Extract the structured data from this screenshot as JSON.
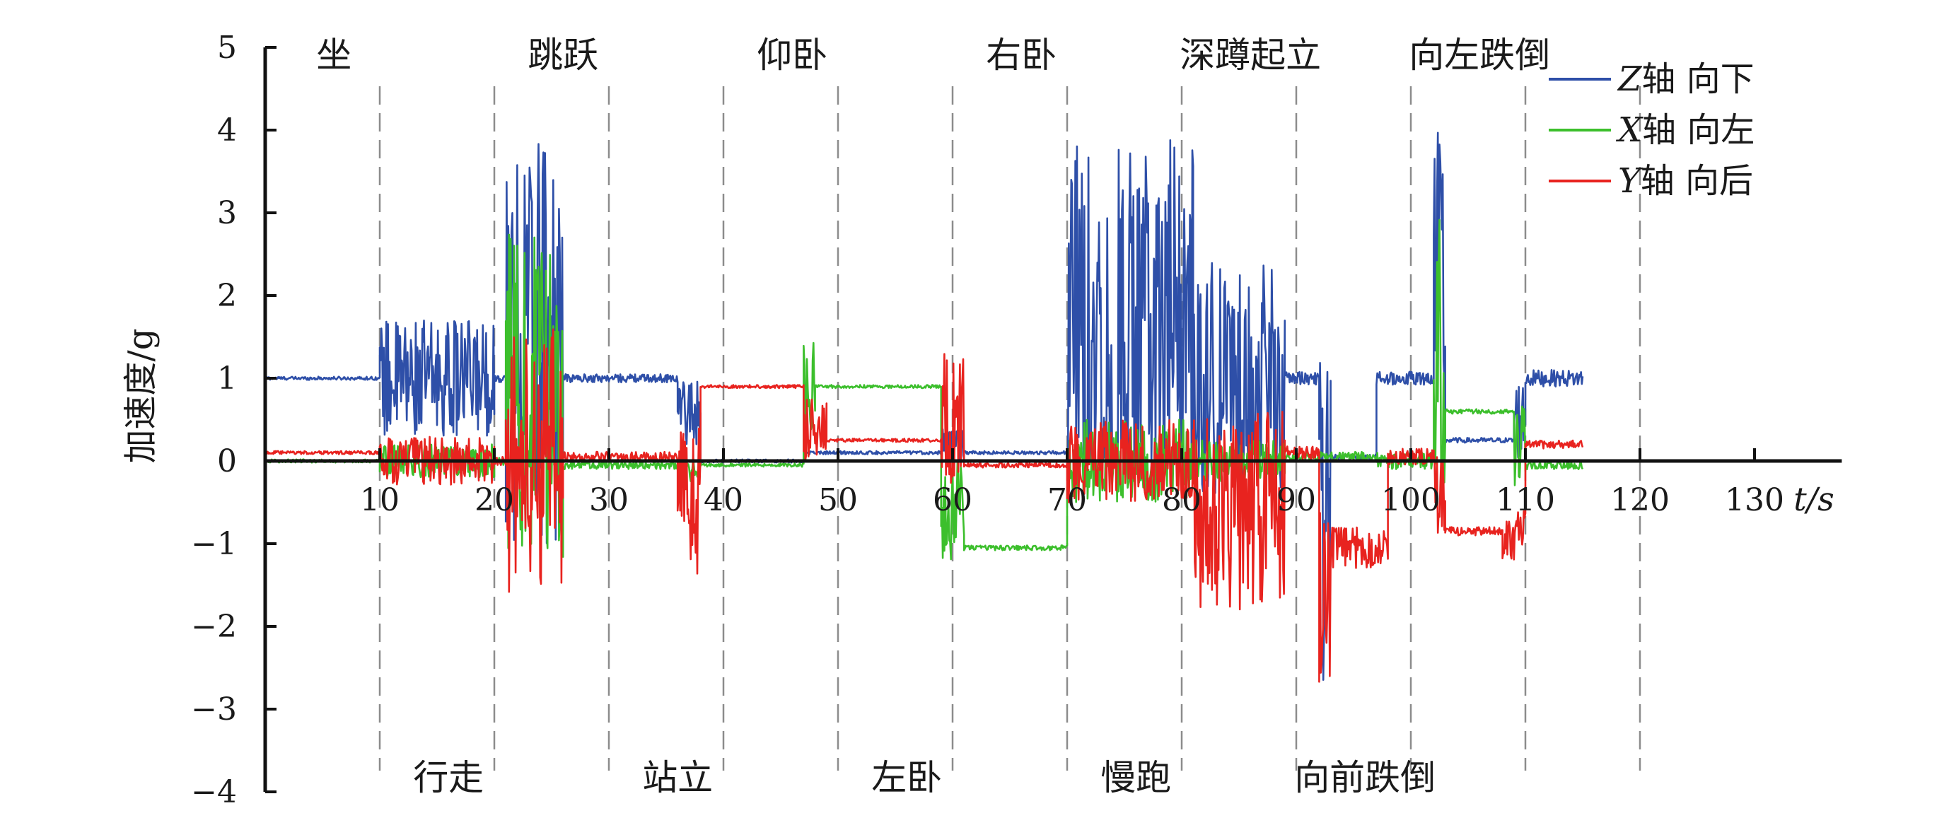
{
  "chart_data": {
    "type": "line",
    "title": "",
    "xlabel": "t/s",
    "ylabel": "加速度/g",
    "xlim": [
      0,
      137
    ],
    "ylim": [
      -4,
      5
    ],
    "x_ticks": [
      10,
      20,
      30,
      40,
      50,
      60,
      70,
      80,
      90,
      100,
      110,
      120,
      130
    ],
    "y_ticks": [
      5,
      4,
      3,
      2,
      1,
      0,
      -1,
      -2,
      -3,
      -4
    ],
    "grid": false,
    "legend_position": "top-right",
    "phase_boundaries": [
      10,
      20,
      30,
      40,
      50,
      60,
      70,
      80,
      90,
      100,
      110,
      120
    ],
    "activities_top": [
      {
        "label": "坐",
        "x": 6
      },
      {
        "label": "跳跃",
        "x": 26
      },
      {
        "label": "仰卧",
        "x": 46
      },
      {
        "label": "右卧",
        "x": 66
      },
      {
        "label": "深蹲起立",
        "x": 86
      },
      {
        "label": "向左跌倒",
        "x": 106
      }
    ],
    "activities_bottom": [
      {
        "label": "行走",
        "x": 16
      },
      {
        "label": "站立",
        "x": 36
      },
      {
        "label": "左卧",
        "x": 56
      },
      {
        "label": "慢跑",
        "x": 76
      },
      {
        "label": "向前跌倒",
        "x": 96
      }
    ],
    "series": [
      {
        "name": "Z轴 向下",
        "legend_axis": "Z",
        "legend_text": "轴 向下",
        "color": "#2e4fa8",
        "segments": [
          {
            "x0": 0,
            "x1": 10,
            "base": 1.0,
            "amp": 0.02
          },
          {
            "x0": 10,
            "x1": 20,
            "base": 1.0,
            "amp": 0.7
          },
          {
            "x0": 20,
            "x1": 21,
            "base": 1.0,
            "amp": 0.05
          },
          {
            "x0": 21,
            "x1": 26,
            "base": 1.5,
            "amp": 2.5,
            "clip": [
              -1.1,
              4.0
            ]
          },
          {
            "x0": 26,
            "x1": 36,
            "base": 1.0,
            "amp": 0.05
          },
          {
            "x0": 36,
            "x1": 38,
            "base": 0.6,
            "amp": 0.4
          },
          {
            "x0": 38,
            "x1": 47,
            "base": 0.0,
            "amp": 0.02
          },
          {
            "x0": 47,
            "x1": 59,
            "base": 0.1,
            "amp": 0.02
          },
          {
            "x0": 59,
            "x1": 61,
            "base": 0.2,
            "amp": 0.2
          },
          {
            "x0": 61,
            "x1": 70,
            "base": 0.1,
            "amp": 0.02
          },
          {
            "x0": 70,
            "x1": 81,
            "base": 1.5,
            "amp": 2.4,
            "clip": [
              0.0,
              4.0
            ]
          },
          {
            "x0": 81,
            "x1": 89,
            "base": 1.0,
            "amp": 1.4
          },
          {
            "x0": 89,
            "x1": 92,
            "base": 1.0,
            "amp": 0.08
          },
          {
            "x0": 92,
            "x1": 93,
            "base": -1.0,
            "amp": 2.4
          },
          {
            "x0": 93,
            "x1": 97,
            "base": 0.05,
            "amp": 0.03
          },
          {
            "x0": 97,
            "x1": 102,
            "base": 1.0,
            "amp": 0.08
          },
          {
            "x0": 102,
            "x1": 103,
            "base": 2.0,
            "amp": 2.0
          },
          {
            "x0": 103,
            "x1": 109,
            "base": 0.25,
            "amp": 0.03
          },
          {
            "x0": 109,
            "x1": 110,
            "base": 0.5,
            "amp": 0.5
          },
          {
            "x0": 110,
            "x1": 115,
            "base": 1.0,
            "amp": 0.1
          }
        ]
      },
      {
        "name": "X轴 向左",
        "legend_axis": "X",
        "legend_text": "轴 向左",
        "color": "#3cbf2c",
        "segments": [
          {
            "x0": 0,
            "x1": 10,
            "base": 0.0,
            "amp": 0.02
          },
          {
            "x0": 10,
            "x1": 20,
            "base": 0.0,
            "amp": 0.2
          },
          {
            "x0": 20,
            "x1": 21,
            "base": 0.0,
            "amp": 0.05
          },
          {
            "x0": 21,
            "x1": 26,
            "base": 0.8,
            "amp": 2.0
          },
          {
            "x0": 26,
            "x1": 36,
            "base": -0.05,
            "amp": 0.05
          },
          {
            "x0": 36,
            "x1": 38,
            "base": -0.1,
            "amp": 0.15
          },
          {
            "x0": 38,
            "x1": 47,
            "base": -0.05,
            "amp": 0.02
          },
          {
            "x0": 47,
            "x1": 48,
            "base": 0.9,
            "amp": 0.6
          },
          {
            "x0": 48,
            "x1": 59,
            "base": 0.9,
            "amp": 0.02
          },
          {
            "x0": 59,
            "x1": 61,
            "base": -0.6,
            "amp": 0.6
          },
          {
            "x0": 61,
            "x1": 70,
            "base": -1.05,
            "amp": 0.03
          },
          {
            "x0": 70,
            "x1": 81,
            "base": 0.0,
            "amp": 0.5
          },
          {
            "x0": 81,
            "x1": 89,
            "base": 0.0,
            "amp": 0.25
          },
          {
            "x0": 89,
            "x1": 97,
            "base": 0.05,
            "amp": 0.06
          },
          {
            "x0": 97,
            "x1": 102,
            "base": 0.0,
            "amp": 0.1
          },
          {
            "x0": 102,
            "x1": 103,
            "base": 1.5,
            "amp": 1.8
          },
          {
            "x0": 103,
            "x1": 109,
            "base": 0.6,
            "amp": 0.03
          },
          {
            "x0": 109,
            "x1": 110,
            "base": 0.2,
            "amp": 0.5
          },
          {
            "x0": 110,
            "x1": 115,
            "base": -0.05,
            "amp": 0.05
          }
        ]
      },
      {
        "name": "Y轴 向后",
        "legend_axis": "Y",
        "legend_text": "轴 向后",
        "color": "#e8231f",
        "segments": [
          {
            "x0": 0,
            "x1": 10,
            "base": 0.1,
            "amp": 0.02
          },
          {
            "x0": 10,
            "x1": 20,
            "base": 0.0,
            "amp": 0.3
          },
          {
            "x0": 20,
            "x1": 21,
            "base": 0.0,
            "amp": 0.05
          },
          {
            "x0": 21,
            "x1": 26,
            "base": 0.0,
            "amp": 1.6
          },
          {
            "x0": 26,
            "x1": 36,
            "base": 0.05,
            "amp": 0.06
          },
          {
            "x0": 36,
            "x1": 38,
            "base": -0.5,
            "amp": 0.9
          },
          {
            "x0": 38,
            "x1": 47,
            "base": 0.9,
            "amp": 0.02
          },
          {
            "x0": 47,
            "x1": 49,
            "base": 0.4,
            "amp": 0.4
          },
          {
            "x0": 49,
            "x1": 59,
            "base": 0.25,
            "amp": 0.02
          },
          {
            "x0": 59,
            "x1": 61,
            "base": 0.5,
            "amp": 0.8
          },
          {
            "x0": 61,
            "x1": 70,
            "base": -0.05,
            "amp": 0.03
          },
          {
            "x0": 70,
            "x1": 81,
            "base": 0.0,
            "amp": 0.5
          },
          {
            "x0": 81,
            "x1": 89,
            "base": -0.6,
            "amp": 1.2
          },
          {
            "x0": 89,
            "x1": 92,
            "base": 0.1,
            "amp": 0.08
          },
          {
            "x0": 92,
            "x1": 93,
            "base": -1.5,
            "amp": 1.2
          },
          {
            "x0": 93,
            "x1": 98,
            "base": -1.05,
            "amp": 0.25
          },
          {
            "x0": 98,
            "x1": 102,
            "base": 0.05,
            "amp": 0.1
          },
          {
            "x0": 102,
            "x1": 103,
            "base": -0.4,
            "amp": 0.5
          },
          {
            "x0": 103,
            "x1": 108,
            "base": -0.85,
            "amp": 0.05
          },
          {
            "x0": 108,
            "x1": 110,
            "base": -0.9,
            "amp": 0.3
          },
          {
            "x0": 110,
            "x1": 115,
            "base": 0.2,
            "amp": 0.05
          }
        ]
      }
    ]
  }
}
